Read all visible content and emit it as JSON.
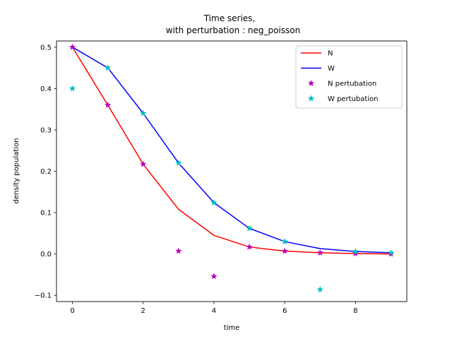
{
  "chart_data": {
    "type": "line",
    "title_line1": "Time series,",
    "title_line2": "with perturbation : neg_poisson",
    "xlabel": "time",
    "ylabel": "density population",
    "xlim": [
      -0.45,
      9.45
    ],
    "ylim": [
      -0.115,
      0.515
    ],
    "xticks": [
      0,
      2,
      4,
      6,
      8
    ],
    "xtick_labels": [
      "0",
      "2",
      "4",
      "6",
      "8"
    ],
    "yticks": [
      -0.1,
      0.0,
      0.1,
      0.2,
      0.3,
      0.4,
      0.5
    ],
    "ytick_labels": [
      "−0.1",
      "0.0",
      "0.1",
      "0.2",
      "0.3",
      "0.4",
      "0.5"
    ],
    "grid": false,
    "legend_position": "upper right",
    "x": [
      0,
      1,
      2,
      3,
      4,
      5,
      6,
      7,
      8,
      9
    ],
    "series": [
      {
        "name": "N",
        "kind": "line",
        "color": "#ff0000",
        "values": [
          0.5,
          0.36,
          0.217,
          0.108,
          0.045,
          0.017,
          0.007,
          0.003,
          0.001,
          0.0
        ]
      },
      {
        "name": "W",
        "kind": "line",
        "color": "#0000ff",
        "values": [
          0.5,
          0.45,
          0.34,
          0.22,
          0.124,
          0.062,
          0.03,
          0.013,
          0.006,
          0.003
        ]
      },
      {
        "name": "N pertubation",
        "kind": "marker",
        "color": "#bf00bf",
        "values": [
          0.5,
          0.36,
          0.217,
          0.007,
          -0.054,
          0.017,
          0.007,
          0.003,
          0.001,
          0.0
        ]
      },
      {
        "name": "W pertubation",
        "kind": "marker",
        "color": "#00bfbf",
        "values": [
          0.4,
          0.45,
          0.34,
          0.22,
          0.124,
          0.062,
          0.03,
          -0.086,
          0.006,
          0.003
        ]
      }
    ]
  }
}
